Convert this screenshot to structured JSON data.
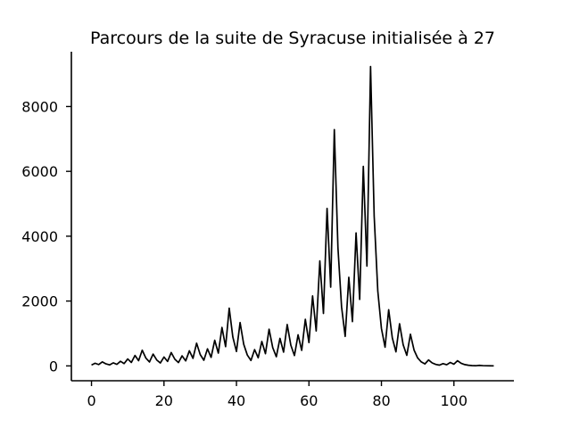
{
  "chart_data": {
    "type": "line",
    "title": "Parcours de la suite de Syracuse initialisée à 27",
    "xlabel": "",
    "ylabel": "",
    "xlim": [
      -5.55,
      116.55
    ],
    "ylim": [
      -458,
      9690
    ],
    "x_ticks": [
      0,
      20,
      40,
      60,
      80,
      100
    ],
    "y_ticks": [
      0,
      2000,
      4000,
      6000,
      8000
    ],
    "x_tick_labels": [
      "0",
      "20",
      "40",
      "60",
      "80",
      "100"
    ],
    "y_tick_labels": [
      "0",
      "2000",
      "4000",
      "6000",
      "8000"
    ],
    "grid": false,
    "series": [
      {
        "color": "#000000",
        "values": [
          27,
          82,
          41,
          124,
          62,
          31,
          94,
          47,
          142,
          71,
          214,
          107,
          322,
          161,
          484,
          242,
          121,
          364,
          182,
          91,
          274,
          137,
          412,
          206,
          103,
          310,
          155,
          466,
          233,
          700,
          350,
          175,
          526,
          263,
          790,
          395,
          1186,
          593,
          1780,
          890,
          445,
          1336,
          668,
          334,
          167,
          502,
          251,
          754,
          377,
          1132,
          566,
          283,
          850,
          425,
          1276,
          638,
          319,
          958,
          479,
          1438,
          719,
          2158,
          1079,
          3238,
          1619,
          4858,
          2429,
          7288,
          3644,
          1822,
          911,
          2734,
          1367,
          4102,
          2051,
          6154,
          3077,
          9232,
          4616,
          2308,
          1154,
          577,
          1732,
          866,
          433,
          1300,
          650,
          325,
          976,
          488,
          244,
          122,
          61,
          184,
          92,
          46,
          23,
          70,
          35,
          106,
          53,
          160,
          80,
          40,
          20,
          10,
          5,
          16,
          8,
          4,
          2,
          1
        ]
      }
    ]
  }
}
